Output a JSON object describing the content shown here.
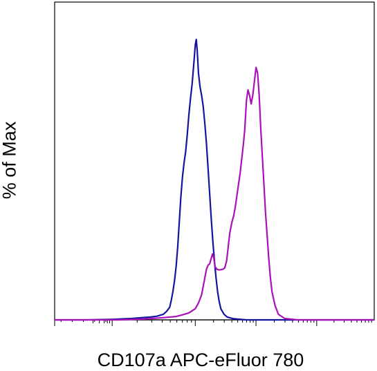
{
  "chart_data": {
    "type": "line",
    "title": "",
    "xlabel": "CD107a APC-eFluor 780",
    "ylabel": "% of Max",
    "x_scale": "biexponential (tick labels not shown)",
    "ylim": [
      0,
      100
    ],
    "grid": false,
    "legend": "none",
    "series": [
      {
        "color": "#1414a0",
        "points": [
          [
            0.0,
            0.0
          ],
          [
            0.1,
            0.0
          ],
          [
            0.18,
            0.2
          ],
          [
            0.24,
            0.5
          ],
          [
            0.3,
            1.0
          ],
          [
            0.32,
            1.3
          ],
          [
            0.34,
            2.0
          ],
          [
            0.35,
            3.0
          ],
          [
            0.36,
            4.5
          ],
          [
            0.365,
            7.0
          ],
          [
            0.37,
            10.0
          ],
          [
            0.375,
            14.0
          ],
          [
            0.38,
            19.0
          ],
          [
            0.385,
            26.0
          ],
          [
            0.39,
            35.0
          ],
          [
            0.395,
            44.0
          ],
          [
            0.4,
            51.0
          ],
          [
            0.405,
            56.0
          ],
          [
            0.41,
            60.0
          ],
          [
            0.415,
            66.0
          ],
          [
            0.42,
            73.0
          ],
          [
            0.425,
            79.0
          ],
          [
            0.43,
            84.0
          ],
          [
            0.436,
            92.0
          ],
          [
            0.44,
            98.0
          ],
          [
            0.443,
            100.0
          ],
          [
            0.446,
            96.0
          ],
          [
            0.45,
            88.0
          ],
          [
            0.455,
            83.0
          ],
          [
            0.46,
            80.0
          ],
          [
            0.465,
            76.0
          ],
          [
            0.47,
            70.0
          ],
          [
            0.475,
            63.0
          ],
          [
            0.48,
            54.0
          ],
          [
            0.485,
            45.0
          ],
          [
            0.49,
            36.0
          ],
          [
            0.495,
            28.0
          ],
          [
            0.5,
            21.0
          ],
          [
            0.505,
            15.0
          ],
          [
            0.51,
            10.0
          ],
          [
            0.515,
            6.5
          ],
          [
            0.52,
            4.0
          ],
          [
            0.53,
            2.0
          ],
          [
            0.54,
            1.0
          ],
          [
            0.56,
            0.4
          ],
          [
            0.6,
            0.0
          ],
          [
            1.0,
            0.0
          ]
        ]
      },
      {
        "color": "#a812b8",
        "points": [
          [
            0.0,
            0.0
          ],
          [
            0.2,
            0.0
          ],
          [
            0.28,
            0.3
          ],
          [
            0.34,
            0.8
          ],
          [
            0.38,
            1.2
          ],
          [
            0.4,
            1.8
          ],
          [
            0.42,
            2.5
          ],
          [
            0.44,
            4.0
          ],
          [
            0.45,
            6.0
          ],
          [
            0.46,
            9.0
          ],
          [
            0.465,
            12.0
          ],
          [
            0.47,
            15.0
          ],
          [
            0.475,
            18.0
          ],
          [
            0.48,
            19.5
          ],
          [
            0.485,
            20.0
          ],
          [
            0.49,
            22.0
          ],
          [
            0.494,
            23.5
          ],
          [
            0.498,
            22.0
          ],
          [
            0.502,
            19.0
          ],
          [
            0.508,
            18.0
          ],
          [
            0.515,
            17.8
          ],
          [
            0.525,
            18.0
          ],
          [
            0.532,
            18.5
          ],
          [
            0.538,
            21.0
          ],
          [
            0.543,
            26.0
          ],
          [
            0.548,
            31.0
          ],
          [
            0.555,
            35.0
          ],
          [
            0.56,
            37.0
          ],
          [
            0.565,
            40.0
          ],
          [
            0.57,
            44.0
          ],
          [
            0.575,
            48.0
          ],
          [
            0.58,
            52.0
          ],
          [
            0.585,
            57.0
          ],
          [
            0.59,
            62.0
          ],
          [
            0.595,
            68.0
          ],
          [
            0.6,
            78.0
          ],
          [
            0.605,
            82.0
          ],
          [
            0.61,
            80.0
          ],
          [
            0.615,
            77.0
          ],
          [
            0.62,
            80.0
          ],
          [
            0.625,
            85.0
          ],
          [
            0.63,
            90.0
          ],
          [
            0.635,
            88.0
          ],
          [
            0.64,
            80.0
          ],
          [
            0.645,
            68.0
          ],
          [
            0.65,
            58.0
          ],
          [
            0.655,
            48.0
          ],
          [
            0.66,
            38.0
          ],
          [
            0.665,
            30.0
          ],
          [
            0.67,
            22.0
          ],
          [
            0.675,
            15.0
          ],
          [
            0.68,
            10.0
          ],
          [
            0.69,
            5.0
          ],
          [
            0.7,
            2.0
          ],
          [
            0.72,
            0.5
          ],
          [
            0.76,
            0.0
          ],
          [
            1.0,
            0.0
          ]
        ]
      }
    ]
  }
}
